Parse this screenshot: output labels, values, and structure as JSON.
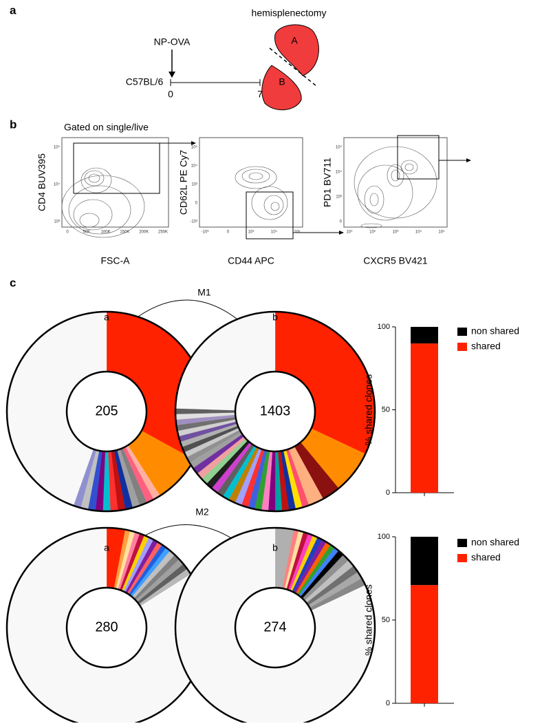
{
  "panel_a": {
    "label": "a",
    "title": "hemisplenectomy",
    "treatment": "NP-OVA",
    "strain": "C57BL/6",
    "timepoints": [
      "0",
      "7"
    ],
    "lobes": [
      "A",
      "B"
    ]
  },
  "panel_b": {
    "label": "b",
    "flow_plots": [
      {
        "gate_label": "Gated on single/live",
        "xlabel": "FSC-A",
        "ylabel": "CD4 BUV395",
        "xtick_labels": [
          "0",
          "50K",
          "100K",
          "150K",
          "200K",
          "250K"
        ],
        "ytick_labels": [
          "10⁵",
          "10⁴",
          "10³"
        ]
      },
      {
        "xlabel": "CD44 APC",
        "ylabel": "CD62L PE Cy7",
        "xtick_labels": [
          "-10³",
          "0",
          "10³",
          "10⁴",
          "10⁵"
        ],
        "ytick_labels": [
          "10⁵",
          "10⁴",
          "10³",
          "0",
          "-10³"
        ]
      },
      {
        "xlabel": "CXCR5 BV421",
        "ylabel": "PD1 BV711",
        "xtick_labels": [
          "10¹",
          "10²",
          "10³",
          "10⁴",
          "10⁵"
        ],
        "ytick_labels": [
          "10⁵",
          "10⁴",
          "10³",
          "0"
        ]
      }
    ]
  },
  "panel_c": {
    "label": "c",
    "group_titles": [
      "M1",
      "M2"
    ]
  },
  "chart_data": [
    {
      "type": "donut",
      "label": "a",
      "center_label": "205",
      "values": [
        33,
        8,
        1.2,
        1.2,
        1.2,
        1.2,
        1.2,
        1.2,
        1.2,
        1.2,
        1.2,
        1.2,
        1.2,
        1.2,
        44.6
      ],
      "colors": [
        "#ff2200",
        "#ff8c00",
        "#ffb0a0",
        "#ff6080",
        "#808080",
        "#a0a0a0",
        "#1030a0",
        "#c01010",
        "#ff3030",
        "#00c0d0",
        "#800080",
        "#3050d0",
        "#c0c0c0",
        "#9090d0",
        "#f8f8f8"
      ]
    },
    {
      "type": "donut",
      "label": "b",
      "center_label": "1403",
      "values": [
        32,
        7,
        3,
        2.5,
        1.1,
        1.1,
        1.1,
        1.1,
        1.1,
        1.1,
        1.1,
        1.1,
        1.1,
        1.1,
        1.1,
        1.1,
        1.1,
        1.1,
        1.1,
        1.1,
        1.1,
        1.1,
        1.1,
        1.1,
        0.9,
        0.9,
        0.9,
        0.9,
        0.9,
        0.9,
        0.9,
        0.9,
        0.9,
        0.9,
        24.5
      ],
      "colors": [
        "#ff2200",
        "#ff8c00",
        "#8b1010",
        "#ffb080",
        "#ff5070",
        "#ffe000",
        "#1030a0",
        "#c01010",
        "#00a0a0",
        "#800080",
        "#ff80c0",
        "#30a030",
        "#4060e0",
        "#ff3030",
        "#a0a0ff",
        "#c08000",
        "#00c0d0",
        "#606060",
        "#d040d0",
        "#202020",
        "#90d090",
        "#f0a0a0",
        "#7030a0",
        "#a0a0a0",
        "#909090",
        "#c8c8c8",
        "#505050",
        "#b0b0b0",
        "#7050a0",
        "#d0d0d0",
        "#707070",
        "#a090c0",
        "#e0e0e0",
        "#606060",
        "#f8f8f8"
      ]
    },
    {
      "type": "stacked_bar",
      "ylabel": "% shared clones",
      "ylim": [
        0,
        100
      ],
      "yticks": [
        0,
        50,
        100
      ],
      "categories": [
        null
      ],
      "series": [
        {
          "name": "shared",
          "color": "#ff2200",
          "values": [
            90
          ]
        },
        {
          "name": "non shared",
          "color": "#000000",
          "values": [
            10
          ]
        }
      ]
    },
    {
      "type": "donut",
      "label": "a",
      "center_label": "280",
      "values": [
        3,
        0.8,
        0.8,
        0.8,
        0.8,
        0.8,
        0.8,
        0.8,
        0.8,
        0.8,
        0.8,
        1,
        1,
        1,
        1,
        1,
        84
      ],
      "colors": [
        "#ff2200",
        "#ffa040",
        "#ffe0a0",
        "#ff80a0",
        "#c01040",
        "#ffd000",
        "#a0a0ff",
        "#8020a0",
        "#ff6060",
        "#2060e0",
        "#40a0ff",
        "#c0c0c0",
        "#808080",
        "#a0a0a0",
        "#606060",
        "#b8b8b8",
        "#f8f8f8"
      ]
    },
    {
      "type": "donut",
      "label": "b",
      "center_label": "274",
      "values": [
        3,
        0.8,
        0.8,
        0.8,
        0.8,
        0.8,
        0.8,
        0.8,
        0.8,
        0.8,
        0.8,
        1,
        1.2,
        1.2,
        1.2,
        1.2,
        1.2,
        82
      ],
      "colors": [
        "#b0b0b0",
        "#ff8080",
        "#ffe0a0",
        "#c01040",
        "#ff40c0",
        "#ffd000",
        "#2040c0",
        "#8020a0",
        "#ff6000",
        "#30a030",
        "#4080ff",
        "#000000",
        "#909090",
        "#c0c0c0",
        "#707070",
        "#a8a8a8",
        "#888888",
        "#f8f8f8"
      ]
    },
    {
      "type": "stacked_bar",
      "ylabel": "% shared clones",
      "ylim": [
        0,
        100
      ],
      "yticks": [
        0,
        50,
        100
      ],
      "categories": [
        null
      ],
      "series": [
        {
          "name": "shared",
          "color": "#ff2200",
          "values": [
            71
          ]
        },
        {
          "name": "non shared",
          "color": "#000000",
          "values": [
            29
          ]
        }
      ]
    }
  ]
}
